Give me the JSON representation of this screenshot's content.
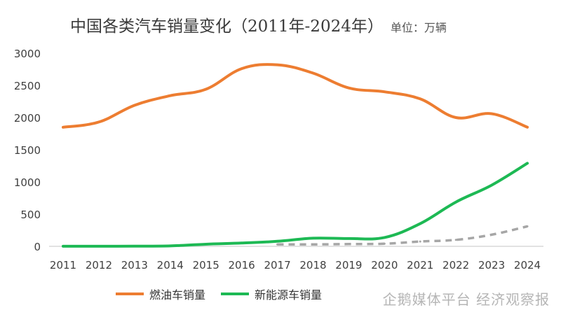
{
  "header": {
    "title": "中国各类汽车销量变化（2011年-2024年）",
    "unit": "单位：万辆"
  },
  "watermark": {
    "text": "企鹅媒体平台 经济观察报"
  },
  "colors": {
    "fuel": "#ED7D31",
    "nev": "#1DB954",
    "third": "#A6A6A6",
    "axis": "#d9d9d9",
    "tick": "#404040"
  },
  "chart_data": {
    "type": "line",
    "title": "中国各类汽车销量变化（2011年-2024年）",
    "ylabel": "单位：万辆",
    "ylim": [
      0,
      3000
    ],
    "y_ticks": [
      0,
      500,
      1000,
      1500,
      2000,
      2500,
      3000
    ],
    "grid": false,
    "legend_position": "bottom",
    "categories": [
      "2011",
      "2012",
      "2013",
      "2014",
      "2015",
      "2016",
      "2017",
      "2018",
      "2019",
      "2020",
      "2021",
      "2022",
      "2023",
      "2024"
    ],
    "series": [
      {
        "name": "燃油车销量",
        "style": "solid",
        "values": [
          1850,
          1930,
          2190,
          2340,
          2440,
          2760,
          2820,
          2690,
          2460,
          2400,
          2290,
          2000,
          2060,
          1850
        ]
      },
      {
        "name": "新能源车销量",
        "style": "solid",
        "values": [
          1,
          1,
          2,
          7,
          33,
          51,
          78,
          126,
          121,
          137,
          352,
          688,
          950,
          1290
        ]
      },
      {
        "name": "",
        "style": "dashed",
        "start_index": 6,
        "values": [
          null,
          null,
          null,
          null,
          null,
          null,
          30,
          30,
          35,
          40,
          75,
          100,
          180,
          310
        ]
      }
    ]
  }
}
